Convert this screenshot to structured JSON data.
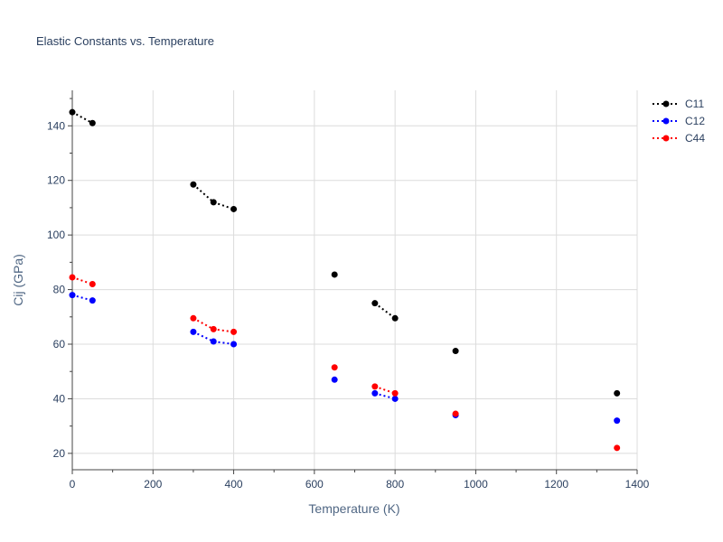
{
  "chart_data": {
    "type": "line",
    "title": "Elastic Constants vs. Temperature",
    "xlabel": "Temperature (K)",
    "ylabel": "Cij (GPa)",
    "xlim": [
      0,
      1400
    ],
    "ylim": [
      14,
      153
    ],
    "xticks": [
      0,
      200,
      400,
      600,
      800,
      1000,
      1200,
      1400
    ],
    "yticks": [
      20,
      40,
      60,
      80,
      100,
      120,
      140
    ],
    "grid": true,
    "legend_position": "top-right",
    "line_style": "dotted",
    "series": [
      {
        "name": "C11",
        "color": "#000000",
        "segments": [
          [
            [
              0,
              145
            ],
            [
              50,
              141
            ]
          ],
          [
            [
              300,
              118.5
            ],
            [
              350,
              112
            ],
            [
              400,
              109.5
            ]
          ],
          [
            [
              650,
              85.5
            ]
          ],
          [
            [
              750,
              75
            ],
            [
              800,
              69.5
            ]
          ],
          [
            [
              950,
              57.5
            ]
          ],
          [
            [
              1350,
              42
            ]
          ]
        ]
      },
      {
        "name": "C12",
        "color": "#0000ff",
        "segments": [
          [
            [
              0,
              78
            ],
            [
              50,
              76
            ]
          ],
          [
            [
              300,
              64.5
            ],
            [
              350,
              61
            ],
            [
              400,
              60
            ]
          ],
          [
            [
              650,
              47
            ]
          ],
          [
            [
              750,
              42
            ],
            [
              800,
              40
            ]
          ],
          [
            [
              950,
              34
            ]
          ],
          [
            [
              1350,
              32
            ]
          ]
        ]
      },
      {
        "name": "C44",
        "color": "#ff0000",
        "segments": [
          [
            [
              0,
              84.5
            ],
            [
              50,
              82
            ]
          ],
          [
            [
              300,
              69.5
            ],
            [
              350,
              65.5
            ],
            [
              400,
              64.5
            ]
          ],
          [
            [
              650,
              51.5
            ]
          ],
          [
            [
              750,
              44.5
            ],
            [
              800,
              42
            ]
          ],
          [
            [
              950,
              34.5
            ]
          ],
          [
            [
              1350,
              22
            ]
          ]
        ]
      }
    ]
  }
}
